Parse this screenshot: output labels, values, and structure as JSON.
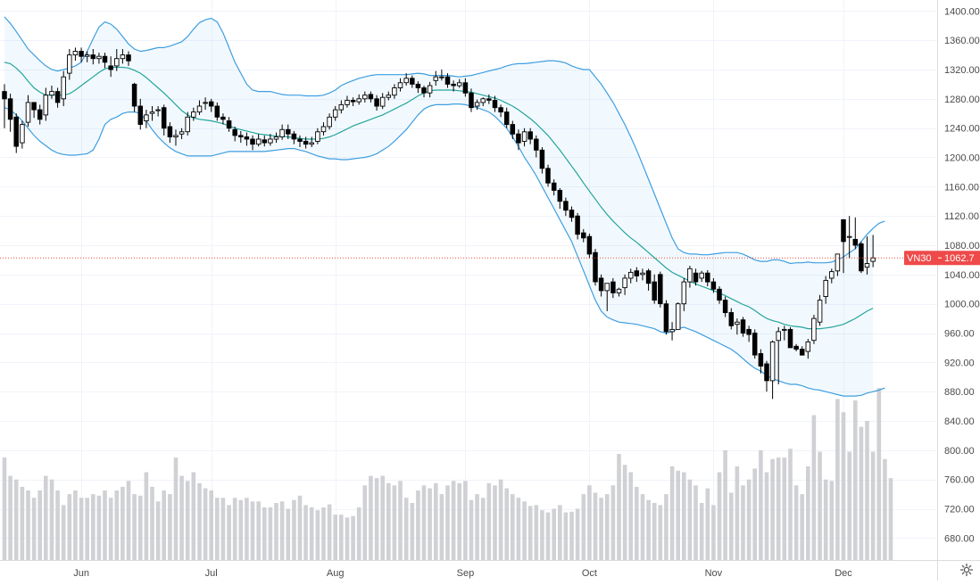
{
  "chart_data": {
    "type": "candlestick",
    "symbol": "VN30",
    "last_value": 1062.7,
    "last_value_label": "1062.7",
    "y_axis": {
      "ticks": [
        680,
        720,
        760,
        800,
        840,
        880,
        920,
        960,
        1000,
        1040,
        1080,
        1120,
        1160,
        1200,
        1240,
        1280,
        1320,
        1360,
        1400
      ],
      "tick_labels": [
        "680.00",
        "720.00",
        "760.00",
        "800.00",
        "840.00",
        "880.00",
        "920.00",
        "960.00",
        "1000.00",
        "1040.00",
        "1080.00",
        "1120.00",
        "1160.00",
        "1200.00",
        "1240.00",
        "1280.00",
        "1320.00",
        "1360.00",
        "1400.00"
      ],
      "range": [
        650,
        1415
      ]
    },
    "x_axis": {
      "labels": [
        {
          "label": "Jun",
          "bar": 13
        },
        {
          "label": "Jul",
          "bar": 35
        },
        {
          "label": "Aug",
          "bar": 56
        },
        {
          "label": "Sep",
          "bar": 78
        },
        {
          "label": "Oct",
          "bar": 99
        },
        {
          "label": "Nov",
          "bar": 120
        },
        {
          "label": "Dec",
          "bar": 142
        }
      ]
    },
    "closes": [
      1280,
      1252,
      1215,
      1245,
      1275,
      1265,
      1252,
      1285,
      1290,
      1275,
      1310,
      1340,
      1345,
      1338,
      1340,
      1335,
      1338,
      1330,
      1320,
      1335,
      1340,
      1332,
      1270,
      1245,
      1258,
      1262,
      1265,
      1240,
      1228,
      1230,
      1235,
      1255,
      1262,
      1270,
      1275,
      1270,
      1255,
      1252,
      1240,
      1230,
      1228,
      1225,
      1218,
      1225,
      1220,
      1225,
      1228,
      1238,
      1232,
      1225,
      1222,
      1218,
      1220,
      1235,
      1242,
      1255,
      1265,
      1272,
      1278,
      1276,
      1280,
      1285,
      1280,
      1270,
      1282,
      1285,
      1295,
      1302,
      1308,
      1300,
      1295,
      1288,
      1298,
      1310,
      1310,
      1300,
      1298,
      1302,
      1288,
      1268,
      1275,
      1280,
      1278,
      1268,
      1262,
      1245,
      1232,
      1220,
      1235,
      1225,
      1210,
      1185,
      1165,
      1155,
      1140,
      1128,
      1118,
      1095,
      1090,
      1068,
      1030,
      1018,
      1028,
      1015,
      1020,
      1035,
      1043,
      1038,
      1042,
      1028,
      1005,
      1000,
      962,
      965,
      1000,
      1030,
      1048,
      1030,
      1042,
      1030,
      1020,
      1005,
      988,
      970,
      975,
      960,
      958,
      930,
      915,
      895,
      948,
      962,
      965,
      940,
      938,
      930,
      948,
      980,
      1005,
      1032,
      1044,
      1068,
      1085,
      1092,
      1080,
      1045,
      1055,
      1062.7
    ],
    "opens": [
      1290,
      1280,
      1255,
      1220,
      1248,
      1275,
      1265,
      1258,
      1285,
      1290,
      1280,
      1315,
      1340,
      1345,
      1338,
      1340,
      1335,
      1338,
      1325,
      1325,
      1335,
      1340,
      1300,
      1270,
      1250,
      1260,
      1265,
      1268,
      1242,
      1228,
      1232,
      1235,
      1255,
      1262,
      1275,
      1276,
      1270,
      1255,
      1250,
      1238,
      1230,
      1228,
      1225,
      1218,
      1224,
      1220,
      1225,
      1228,
      1238,
      1232,
      1225,
      1222,
      1218,
      1222,
      1235,
      1242,
      1255,
      1265,
      1272,
      1278,
      1276,
      1280,
      1286,
      1280,
      1270,
      1282,
      1285,
      1295,
      1302,
      1308,
      1300,
      1295,
      1288,
      1305,
      1310,
      1310,
      1300,
      1298,
      1302,
      1288,
      1270,
      1275,
      1280,
      1278,
      1268,
      1262,
      1245,
      1232,
      1222,
      1235,
      1225,
      1210,
      1185,
      1165,
      1155,
      1140,
      1128,
      1120,
      1097,
      1092,
      1070,
      1035,
      1018,
      1030,
      1015,
      1022,
      1035,
      1045,
      1040,
      1045,
      1030,
      1040,
      1000,
      962,
      965,
      1000,
      1030,
      1042,
      1035,
      1042,
      1030,
      1020,
      1005,
      988,
      972,
      978,
      965,
      960,
      932,
      918,
      895,
      950,
      965,
      965,
      942,
      938,
      935,
      950,
      975,
      1010,
      1035,
      1045,
      1115,
      1092,
      1088,
      1082,
      1050,
      1058
    ],
    "highs": [
      1300,
      1287,
      1260,
      1250,
      1285,
      1275,
      1272,
      1295,
      1298,
      1295,
      1318,
      1348,
      1350,
      1350,
      1345,
      1348,
      1343,
      1343,
      1338,
      1348,
      1348,
      1345,
      1302,
      1280,
      1265,
      1270,
      1270,
      1272,
      1248,
      1238,
      1240,
      1262,
      1268,
      1278,
      1282,
      1280,
      1275,
      1260,
      1255,
      1242,
      1236,
      1234,
      1230,
      1232,
      1230,
      1232,
      1234,
      1245,
      1245,
      1236,
      1230,
      1228,
      1228,
      1240,
      1248,
      1260,
      1270,
      1278,
      1284,
      1282,
      1286,
      1290,
      1290,
      1285,
      1288,
      1290,
      1300,
      1308,
      1315,
      1312,
      1304,
      1298,
      1303,
      1318,
      1320,
      1315,
      1305,
      1307,
      1308,
      1294,
      1279,
      1282,
      1286,
      1284,
      1272,
      1268,
      1250,
      1238,
      1240,
      1240,
      1230,
      1214,
      1190,
      1170,
      1158,
      1145,
      1133,
      1124,
      1102,
      1096,
      1075,
      1040,
      1025,
      1035,
      1022,
      1040,
      1048,
      1050,
      1048,
      1048,
      1040,
      1044,
      1005,
      975,
      1002,
      1035,
      1052,
      1048,
      1045,
      1046,
      1035,
      1024,
      1010,
      994,
      980,
      982,
      970,
      965,
      938,
      922,
      950,
      968,
      970,
      968,
      945,
      942,
      952,
      985,
      1012,
      1038,
      1048,
      1062,
      1095,
      1120,
      1118,
      1085,
      1092,
      1094
    ],
    "lows": [
      1240,
      1235,
      1206,
      1212,
      1242,
      1254,
      1245,
      1250,
      1280,
      1268,
      1270,
      1306,
      1332,
      1330,
      1330,
      1327,
      1328,
      1322,
      1310,
      1318,
      1328,
      1325,
      1262,
      1238,
      1240,
      1250,
      1256,
      1230,
      1220,
      1216,
      1225,
      1230,
      1250,
      1258,
      1265,
      1262,
      1250,
      1245,
      1235,
      1222,
      1220,
      1216,
      1210,
      1215,
      1215,
      1216,
      1220,
      1224,
      1225,
      1218,
      1214,
      1212,
      1214,
      1218,
      1230,
      1238,
      1250,
      1260,
      1268,
      1270,
      1272,
      1275,
      1275,
      1264,
      1266,
      1278,
      1280,
      1290,
      1298,
      1295,
      1288,
      1282,
      1282,
      1298,
      1305,
      1295,
      1290,
      1295,
      1283,
      1262,
      1265,
      1270,
      1273,
      1262,
      1255,
      1240,
      1225,
      1210,
      1215,
      1218,
      1200,
      1178,
      1160,
      1148,
      1130,
      1120,
      1112,
      1088,
      1084,
      1062,
      1025,
      1010,
      990,
      1008,
      1010,
      1012,
      1028,
      1030,
      1032,
      1018,
      1000,
      995,
      958,
      950,
      965,
      990,
      1022,
      1025,
      1030,
      1024,
      1015,
      1000,
      982,
      965,
      958,
      955,
      948,
      925,
      905,
      880,
      870,
      890,
      950,
      955,
      935,
      930,
      925,
      945,
      970,
      1000,
      1028,
      1038,
      1042,
      1062,
      1075,
      1042,
      1040,
      1050
    ],
    "bb_mid": [
      1330,
      1328,
      1322,
      1314,
      1304,
      1295,
      1289,
      1285,
      1285,
      1285,
      1285,
      1287,
      1292,
      1298,
      1304,
      1310,
      1316,
      1321,
      1323,
      1323,
      1323,
      1322,
      1319,
      1315,
      1309,
      1302,
      1295,
      1288,
      1280,
      1272,
      1264,
      1258,
      1254,
      1252,
      1251,
      1250,
      1248,
      1246,
      1243,
      1240,
      1238,
      1236,
      1234,
      1232,
      1231,
      1230,
      1229,
      1229,
      1228,
      1227,
      1226,
      1225,
      1225,
      1225,
      1226,
      1228,
      1231,
      1235,
      1239,
      1243,
      1246,
      1249,
      1252,
      1255,
      1258,
      1262,
      1266,
      1270,
      1274,
      1279,
      1284,
      1288,
      1291,
      1292,
      1292,
      1292,
      1292,
      1291,
      1290,
      1289,
      1287,
      1285,
      1283,
      1281,
      1278,
      1274,
      1270,
      1265,
      1259,
      1253,
      1246,
      1238,
      1230,
      1220,
      1210,
      1199,
      1188,
      1177,
      1165,
      1154,
      1143,
      1132,
      1122,
      1113,
      1105,
      1097,
      1090,
      1084,
      1077,
      1070,
      1063,
      1056,
      1049,
      1043,
      1039,
      1035,
      1031,
      1027,
      1024,
      1021,
      1018,
      1015,
      1011,
      1007,
      1003,
      999,
      996,
      991,
      985,
      980,
      977,
      975,
      972,
      970,
      969,
      968,
      966,
      966,
      966,
      967,
      968,
      970,
      972,
      976,
      980,
      985,
      990,
      994
    ],
    "bb_upper": [
      1392,
      1383,
      1372,
      1360,
      1348,
      1340,
      1332,
      1325,
      1320,
      1318,
      1320,
      1322,
      1325,
      1330,
      1345,
      1362,
      1378,
      1385,
      1382,
      1375,
      1365,
      1355,
      1348,
      1345,
      1346,
      1348,
      1350,
      1350,
      1352,
      1355,
      1358,
      1365,
      1375,
      1384,
      1388,
      1390,
      1385,
      1370,
      1350,
      1330,
      1315,
      1300,
      1292,
      1290,
      1290,
      1290,
      1288,
      1286,
      1285,
      1285,
      1285,
      1284,
      1284,
      1284,
      1285,
      1288,
      1292,
      1298,
      1302,
      1305,
      1308,
      1310,
      1312,
      1313,
      1313,
      1313,
      1313,
      1313,
      1313,
      1314,
      1315,
      1314,
      1312,
      1312,
      1312,
      1312,
      1311,
      1310,
      1311,
      1312,
      1314,
      1316,
      1318,
      1320,
      1322,
      1325,
      1327,
      1328,
      1328,
      1329,
      1330,
      1331,
      1332,
      1332,
      1331,
      1329,
      1325,
      1322,
      1320,
      1320,
      1310,
      1300,
      1288,
      1275,
      1260,
      1245,
      1228,
      1210,
      1190,
      1170,
      1150,
      1130,
      1110,
      1090,
      1075,
      1070,
      1068,
      1068,
      1067,
      1067,
      1068,
      1069,
      1070,
      1070,
      1070,
      1068,
      1064,
      1060,
      1058,
      1058,
      1060,
      1060,
      1058,
      1055,
      1056,
      1056,
      1057,
      1056,
      1056,
      1056,
      1057,
      1060,
      1064,
      1070,
      1075,
      1085,
      1095,
      1103,
      1110,
      1113
    ],
    "bb_lower": [
      1268,
      1265,
      1258,
      1250,
      1240,
      1230,
      1222,
      1216,
      1210,
      1206,
      1204,
      1203,
      1203,
      1204,
      1205,
      1210,
      1225,
      1245,
      1252,
      1255,
      1260,
      1262,
      1262,
      1260,
      1250,
      1238,
      1228,
      1220,
      1213,
      1208,
      1205,
      1202,
      1202,
      1202,
      1202,
      1202,
      1204,
      1206,
      1208,
      1208,
      1208,
      1208,
      1208,
      1208,
      1208,
      1209,
      1210,
      1211,
      1212,
      1212,
      1210,
      1208,
      1205,
      1202,
      1200,
      1198,
      1198,
      1197,
      1197,
      1198,
      1199,
      1200,
      1202,
      1205,
      1210,
      1215,
      1222,
      1230,
      1238,
      1248,
      1258,
      1266,
      1270,
      1272,
      1272,
      1272,
      1273,
      1273,
      1272,
      1270,
      1268,
      1265,
      1262,
      1256,
      1248,
      1240,
      1228,
      1215,
      1200,
      1188,
      1175,
      1160,
      1145,
      1130,
      1115,
      1100,
      1085,
      1065,
      1045,
      1025,
      1005,
      990,
      982,
      978,
      975,
      974,
      973,
      972,
      970,
      968,
      966,
      962,
      960,
      962,
      966,
      968,
      965,
      962,
      958,
      954,
      950,
      946,
      942,
      938,
      932,
      925,
      918,
      912,
      908,
      902,
      898,
      895,
      892,
      890,
      890,
      888,
      885,
      883,
      882,
      880,
      878,
      876,
      874,
      874,
      874,
      875,
      878,
      880,
      882,
      885
    ],
    "volumes": [
      790,
      765,
      760,
      750,
      745,
      735,
      745,
      765,
      760,
      745,
      725,
      740,
      745,
      735,
      735,
      740,
      738,
      745,
      735,
      745,
      750,
      758,
      740,
      738,
      770,
      750,
      730,
      745,
      740,
      790,
      765,
      758,
      770,
      755,
      748,
      745,
      735,
      735,
      725,
      735,
      732,
      735,
      730,
      730,
      722,
      722,
      728,
      730,
      720,
      732,
      738,
      725,
      722,
      718,
      722,
      726,
      712,
      712,
      708,
      710,
      722,
      752,
      765,
      762,
      765,
      755,
      752,
      758,
      735,
      728,
      745,
      752,
      748,
      755,
      740,
      752,
      758,
      755,
      758,
      732,
      740,
      735,
      755,
      752,
      760,
      748,
      740,
      735,
      730,
      724,
      725,
      718,
      715,
      720,
      725,
      715,
      716,
      720,
      740,
      752,
      742,
      735,
      740,
      752,
      795,
      780,
      770,
      750,
      740,
      732,
      728,
      725,
      740,
      778,
      772,
      770,
      760,
      752,
      728,
      748,
      725,
      770,
      800,
      742,
      778,
      752,
      760,
      775,
      800,
      770,
      788,
      790,
      790,
      802,
      752,
      740,
      778,
      848,
      798,
      760,
      758,
      870,
      852,
      798,
      868,
      832,
      840,
      798,
      885,
      788,
      762
    ]
  }
}
